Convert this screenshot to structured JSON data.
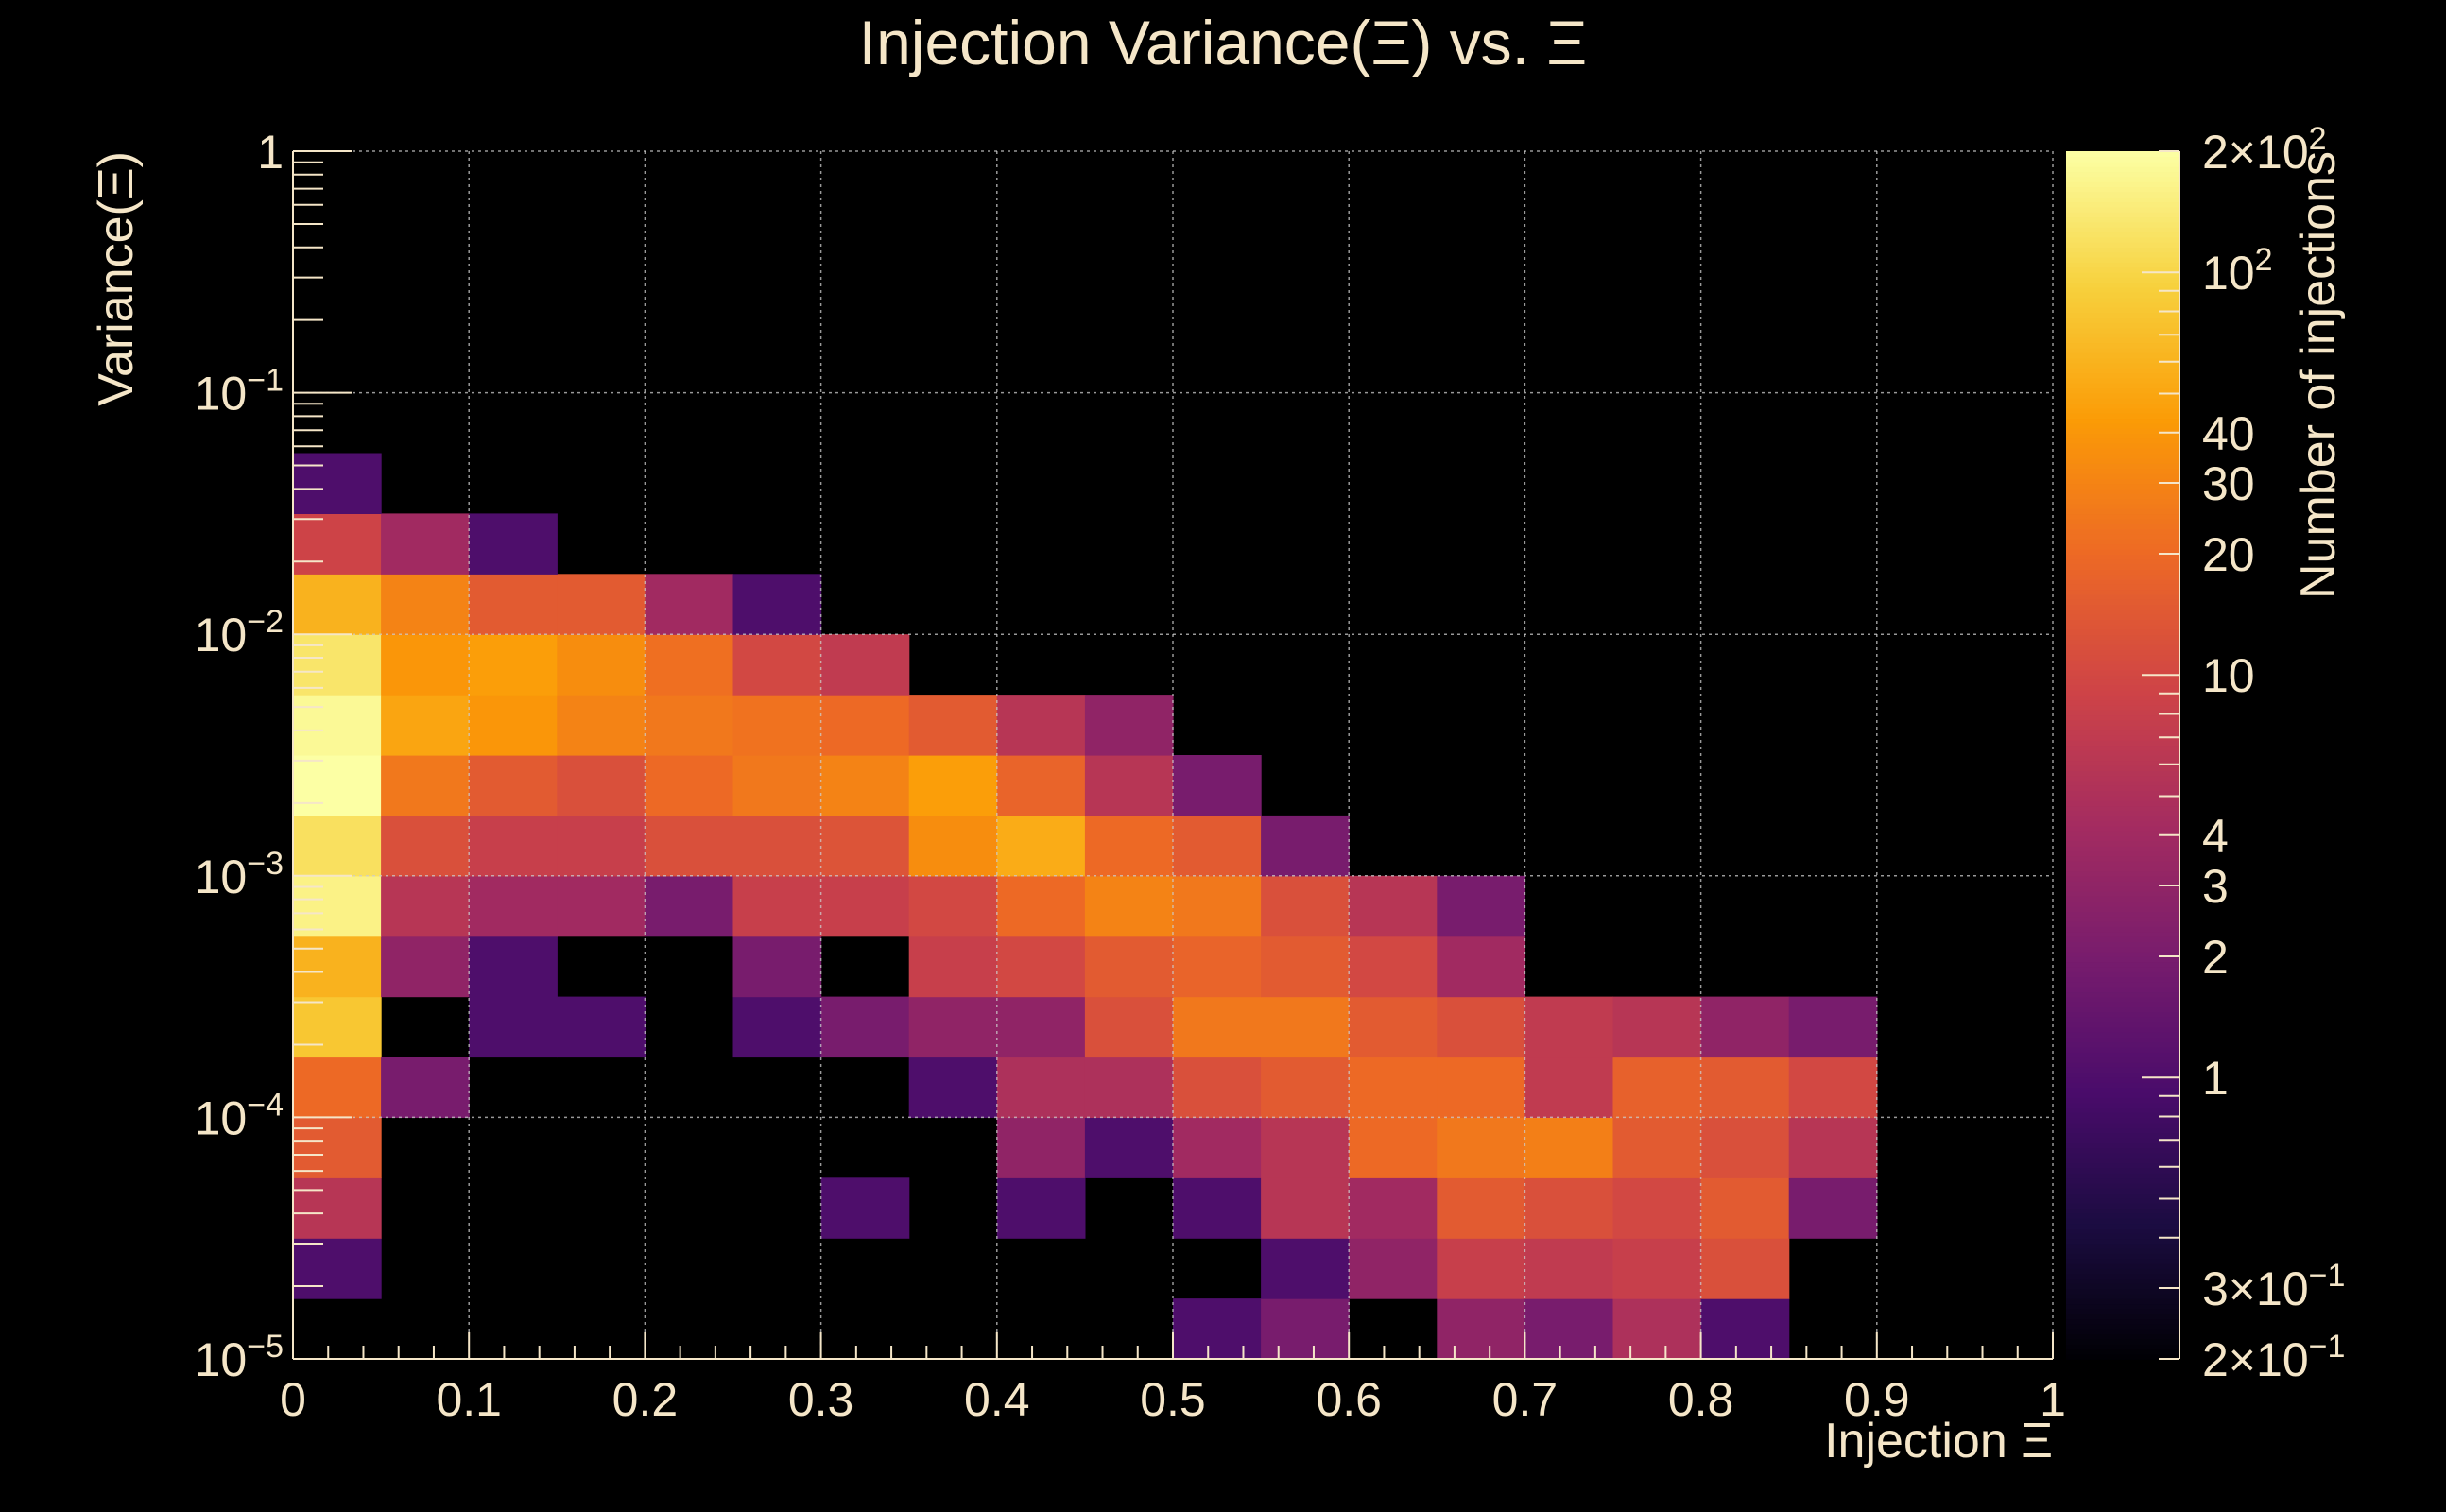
{
  "chart_data": {
    "type": "heatmap",
    "title": "Injection Variance(Ξ) vs. Ξ",
    "xlabel": "Injection Ξ",
    "ylabel": "Variance(Ξ)",
    "colorbar_label": "Number of injections",
    "x_scale": "linear",
    "y_scale": "log",
    "xlim": [
      0,
      1
    ],
    "ylim": [
      1e-05,
      1
    ],
    "z_range": [
      0.2,
      200
    ],
    "x_ticks": [
      {
        "value": 0,
        "label": "0"
      },
      {
        "value": 0.1,
        "label": "0.1"
      },
      {
        "value": 0.2,
        "label": "0.2"
      },
      {
        "value": 0.3,
        "label": "0.3"
      },
      {
        "value": 0.4,
        "label": "0.4"
      },
      {
        "value": 0.5,
        "label": "0.5"
      },
      {
        "value": 0.6,
        "label": "0.6"
      },
      {
        "value": 0.7,
        "label": "0.7"
      },
      {
        "value": 0.8,
        "label": "0.8"
      },
      {
        "value": 0.9,
        "label": "0.9"
      },
      {
        "value": 1,
        "label": "1"
      }
    ],
    "y_ticks": [
      {
        "value": 1e-05,
        "base": "10",
        "exp": "−5"
      },
      {
        "value": 0.0001,
        "base": "10",
        "exp": "−4"
      },
      {
        "value": 0.001,
        "base": "10",
        "exp": "−3"
      },
      {
        "value": 0.01,
        "base": "10",
        "exp": "−2"
      },
      {
        "value": 0.1,
        "base": "10",
        "exp": "−1"
      },
      {
        "value": 1,
        "base": "1",
        "exp": ""
      }
    ],
    "colorbar_ticks": [
      {
        "value": 200,
        "base": "2×10",
        "exp": "2"
      },
      {
        "value": 100,
        "base": "10",
        "exp": "2"
      },
      {
        "value": 40,
        "base": "40",
        "exp": ""
      },
      {
        "value": 30,
        "base": "30",
        "exp": ""
      },
      {
        "value": 20,
        "base": "20",
        "exp": ""
      },
      {
        "value": 10,
        "base": "10",
        "exp": ""
      },
      {
        "value": 4,
        "base": "4",
        "exp": ""
      },
      {
        "value": 3,
        "base": "3",
        "exp": ""
      },
      {
        "value": 2,
        "base": "2",
        "exp": ""
      },
      {
        "value": 1,
        "base": "1",
        "exp": ""
      },
      {
        "value": 0.3,
        "base": "3×10",
        "exp": "−1"
      },
      {
        "value": 0.2,
        "base": "2×10",
        "exp": "−1"
      }
    ],
    "colormap": [
      "#000004",
      "#1b0c41",
      "#4a0c6b",
      "#781c6d",
      "#a52c60",
      "#cf4446",
      "#ed6925",
      "#fb9b06",
      "#f7d13d",
      "#fcffa4"
    ],
    "x_bin_edges": [
      0,
      0.05,
      0.1,
      0.15,
      0.2,
      0.25,
      0.3,
      0.35,
      0.4,
      0.45,
      0.5,
      0.55,
      0.6,
      0.65,
      0.7,
      0.75,
      0.8,
      0.85,
      0.9,
      0.95,
      1.0
    ],
    "y_bins_per_decade": 4,
    "y_bin_note": "row r spans log10(variance) from -5 + r/4 to -5 + (r+1)/4; row 0 is lowest",
    "counts": [
      [
        0,
        0,
        0,
        0,
        0,
        0,
        0,
        0,
        0,
        0,
        1,
        2,
        0,
        3,
        2,
        5,
        1,
        0,
        0,
        0
      ],
      [
        1,
        0,
        0,
        0,
        0,
        0,
        0,
        0,
        0,
        0,
        0,
        1,
        3,
        8,
        7,
        8,
        12,
        0,
        0,
        0
      ],
      [
        6,
        0,
        0,
        0,
        0,
        0,
        1,
        0,
        1,
        0,
        1,
        6,
        4,
        15,
        12,
        10,
        15,
        2,
        0,
        0
      ],
      [
        15,
        0,
        0,
        0,
        0,
        0,
        0,
        0,
        3,
        1,
        4,
        6,
        20,
        25,
        28,
        15,
        12,
        6,
        0,
        0
      ],
      [
        20,
        2,
        0,
        0,
        0,
        0,
        0,
        1,
        5,
        5,
        12,
        15,
        20,
        20,
        7,
        17,
        15,
        10,
        0,
        0
      ],
      [
        80,
        0,
        1,
        1,
        0,
        1,
        2,
        3,
        3,
        12,
        25,
        25,
        15,
        12,
        7,
        6,
        3,
        2,
        0,
        0
      ],
      [
        60,
        3,
        1,
        0,
        0,
        2,
        0,
        8,
        10,
        15,
        18,
        15,
        10,
        4,
        0,
        0,
        0,
        0,
        0,
        0
      ],
      [
        160,
        6,
        4,
        4,
        2,
        8,
        8,
        10,
        20,
        30,
        25,
        12,
        6,
        2,
        0,
        0,
        0,
        0,
        0,
        0
      ],
      [
        120,
        12,
        8,
        8,
        12,
        12,
        13,
        35,
        55,
        20,
        15,
        2,
        0,
        0,
        0,
        0,
        0,
        0,
        0,
        0
      ],
      [
        200,
        25,
        15,
        12,
        20,
        25,
        30,
        45,
        18,
        6,
        2,
        0,
        0,
        0,
        0,
        0,
        0,
        0,
        0,
        0
      ],
      [
        180,
        50,
        40,
        30,
        25,
        23,
        20,
        15,
        6,
        3,
        0,
        0,
        0,
        0,
        0,
        0,
        0,
        0,
        0,
        0
      ],
      [
        130,
        40,
        45,
        35,
        22,
        10,
        7,
        0,
        0,
        0,
        0,
        0,
        0,
        0,
        0,
        0,
        0,
        0,
        0,
        0
      ],
      [
        60,
        30,
        15,
        15,
        4,
        1,
        0,
        0,
        0,
        0,
        0,
        0,
        0,
        0,
        0,
        0,
        0,
        0,
        0,
        0
      ],
      [
        9,
        4,
        1,
        0,
        0,
        0,
        0,
        0,
        0,
        0,
        0,
        0,
        0,
        0,
        0,
        0,
        0,
        0,
        0,
        0
      ],
      [
        1,
        0,
        0,
        0,
        0,
        0,
        0,
        0,
        0,
        0,
        0,
        0,
        0,
        0,
        0,
        0,
        0,
        0,
        0,
        0
      ],
      [
        0,
        0,
        0,
        0,
        0,
        0,
        0,
        0,
        0,
        0,
        0,
        0,
        0,
        0,
        0,
        0,
        0,
        0,
        0,
        0
      ]
    ],
    "grid": true,
    "colorbar": "right"
  }
}
